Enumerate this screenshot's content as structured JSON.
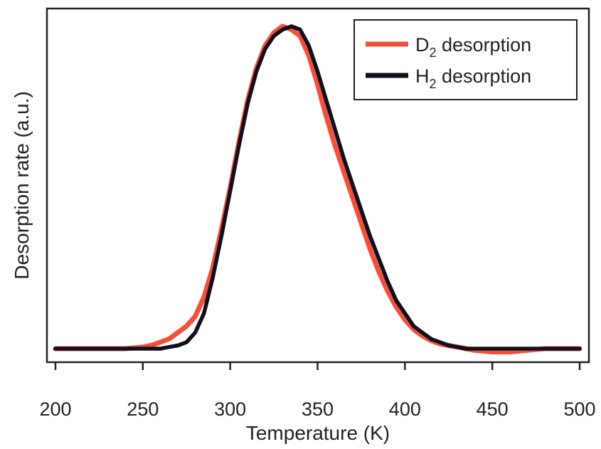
{
  "chart_data": {
    "type": "line",
    "title": "",
    "xlabel": "Temperature (K)",
    "ylabel": "Desorption rate (a.u.)",
    "xlim": [
      200,
      500
    ],
    "ylim": [
      0,
      1
    ],
    "x_ticks": [
      200,
      250,
      300,
      350,
      400,
      450,
      500
    ],
    "x_tick_labels": [
      "200",
      "250",
      "300",
      "350",
      "400",
      "450",
      "500"
    ],
    "y_ticks": [],
    "grid": false,
    "legend_position": "top-right",
    "series": [
      {
        "name_main": "D",
        "name_sub": "2",
        "name_rest": " desorption",
        "color": "#f0503c",
        "x": [
          200,
          220,
          240,
          250,
          255,
          260,
          265,
          270,
          275,
          280,
          285,
          290,
          295,
          300,
          305,
          310,
          315,
          320,
          325,
          330,
          335,
          340,
          345,
          350,
          355,
          360,
          365,
          370,
          375,
          380,
          385,
          390,
          395,
          400,
          405,
          410,
          415,
          420,
          425,
          430,
          435,
          440,
          450,
          460,
          470,
          480,
          490,
          500
        ],
        "y": [
          0.0,
          0.0,
          0.0,
          0.005,
          0.01,
          0.02,
          0.03,
          0.05,
          0.07,
          0.1,
          0.16,
          0.25,
          0.37,
          0.5,
          0.64,
          0.77,
          0.87,
          0.94,
          0.98,
          1.0,
          0.99,
          0.97,
          0.91,
          0.82,
          0.72,
          0.63,
          0.55,
          0.47,
          0.39,
          0.31,
          0.24,
          0.18,
          0.13,
          0.09,
          0.06,
          0.04,
          0.025,
          0.015,
          0.01,
          0.005,
          0.0,
          -0.005,
          -0.01,
          -0.01,
          -0.005,
          0.0,
          0.0,
          0.0
        ]
      },
      {
        "name_main": "H",
        "name_sub": "2",
        "name_rest": " desorption",
        "color": "#150d1b",
        "x": [
          200,
          220,
          240,
          250,
          255,
          260,
          265,
          270,
          275,
          280,
          285,
          290,
          295,
          300,
          305,
          310,
          315,
          320,
          325,
          330,
          335,
          340,
          345,
          350,
          355,
          360,
          365,
          370,
          375,
          380,
          385,
          390,
          395,
          400,
          405,
          410,
          415,
          420,
          425,
          430,
          435,
          440,
          450,
          460,
          470,
          480,
          490,
          500
        ],
        "y": [
          0.0,
          0.0,
          0.0,
          0.0,
          0.0,
          0.0,
          0.005,
          0.01,
          0.02,
          0.05,
          0.11,
          0.22,
          0.35,
          0.49,
          0.63,
          0.76,
          0.86,
          0.93,
          0.97,
          0.99,
          1.0,
          0.99,
          0.94,
          0.86,
          0.77,
          0.68,
          0.59,
          0.51,
          0.43,
          0.35,
          0.28,
          0.21,
          0.15,
          0.11,
          0.07,
          0.05,
          0.03,
          0.02,
          0.01,
          0.005,
          0.0,
          0.0,
          0.0,
          0.0,
          0.0,
          0.0,
          0.0,
          0.0
        ]
      }
    ]
  }
}
